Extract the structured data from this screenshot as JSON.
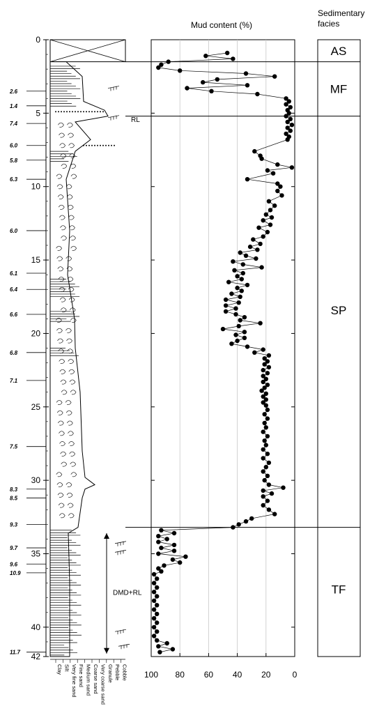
{
  "chart_data": {
    "type": "scatter",
    "title": "",
    "x_title": "Mud content (%)",
    "facies_title": "Sedimentary facies",
    "xlim": [
      100,
      0
    ],
    "ylim": [
      0,
      42
    ],
    "x_ticks": [
      100,
      80,
      60,
      40,
      20,
      0
    ],
    "y_ticks": [
      0,
      5,
      10,
      15,
      20,
      25,
      30,
      35,
      40,
      42
    ],
    "grid_x": [
      80,
      60,
      40,
      20
    ],
    "facies": [
      {
        "label": "AS",
        "top": 0,
        "bottom": 1.5
      },
      {
        "label": "MF",
        "top": 1.5,
        "bottom": 5.2
      },
      {
        "label": "SP",
        "top": 5.2,
        "bottom": 33.2
      },
      {
        "label": "TF",
        "top": 33.2,
        "bottom": 42
      }
    ],
    "boundaries": [
      1.5,
      5.2,
      33.2
    ],
    "ages": [
      {
        "label": "2.6",
        "depth": 3.5
      },
      {
        "label": "1.4",
        "depth": 4.5
      },
      {
        "label": "7.4",
        "depth": 5.7
      },
      {
        "label": "6.0",
        "depth": 7.2
      },
      {
        "label": "5.8",
        "depth": 8.2
      },
      {
        "label": "6.3",
        "depth": 9.5
      },
      {
        "label": "6.0",
        "depth": 13.0
      },
      {
        "label": "6.1",
        "depth": 15.9
      },
      {
        "label": "6.4",
        "depth": 17.0
      },
      {
        "label": "6.6",
        "depth": 18.7
      },
      {
        "label": "6.8",
        "depth": 21.3
      },
      {
        "label": "7.1",
        "depth": 23.2
      },
      {
        "label": "7.5",
        "depth": 27.7
      },
      {
        "label": "8.3",
        "depth": 30.6
      },
      {
        "label": "8.5",
        "depth": 31.2
      },
      {
        "label": "9.3",
        "depth": 33.0
      },
      {
        "label": "9.7",
        "depth": 34.6
      },
      {
        "label": "9.6",
        "depth": 35.7
      },
      {
        "label": "10.9",
        "depth": 36.3
      },
      {
        "label": "11.7",
        "depth": 41.7
      }
    ],
    "annotations": {
      "rl": "RL",
      "dmd": "DMD+RL"
    },
    "grain_sizes": [
      "Clay",
      "Silt",
      "Very fine sand",
      "Fine sand",
      "Medium sand",
      "Coarse sand",
      "Very coarse sand",
      "Granule",
      "Pebble",
      "Cobble"
    ],
    "series": [
      {
        "points": [
          [
            47,
            0.9
          ],
          [
            62,
            1.1
          ],
          [
            43,
            1.3
          ],
          [
            88,
            1.5
          ],
          [
            93,
            1.7
          ],
          [
            95,
            1.9
          ],
          [
            80,
            2.1
          ],
          [
            34,
            2.3
          ],
          [
            14,
            2.5
          ],
          [
            54,
            2.7
          ],
          [
            64,
            2.9
          ],
          [
            33,
            3.1
          ],
          [
            75,
            3.3
          ],
          [
            58,
            3.5
          ],
          [
            26,
            3.7
          ],
          [
            6,
            4.0
          ],
          [
            4,
            4.2
          ],
          [
            6,
            4.4
          ],
          [
            3,
            4.6
          ],
          [
            5,
            4.8
          ],
          [
            4,
            5.0
          ],
          [
            6,
            5.2
          ],
          [
            3,
            5.4
          ],
          [
            5,
            5.6
          ],
          [
            2,
            5.8
          ],
          [
            5,
            6.0
          ],
          [
            3,
            6.2
          ],
          [
            6,
            6.4
          ],
          [
            4,
            6.6
          ],
          [
            5,
            6.8
          ],
          [
            28,
            7.6
          ],
          [
            24,
            7.9
          ],
          [
            23,
            8.1
          ],
          [
            12,
            8.5
          ],
          [
            2,
            8.7
          ],
          [
            19,
            8.9
          ],
          [
            15,
            9.1
          ],
          [
            33,
            9.5
          ],
          [
            12,
            9.8
          ],
          [
            10,
            10.0
          ],
          [
            12,
            10.3
          ],
          [
            9,
            10.6
          ],
          [
            18,
            11.0
          ],
          [
            14,
            11.3
          ],
          [
            17,
            11.6
          ],
          [
            20,
            11.9
          ],
          [
            16,
            12.1
          ],
          [
            22,
            12.3
          ],
          [
            17,
            12.6
          ],
          [
            25,
            12.8
          ],
          [
            19,
            13.1
          ],
          [
            22,
            13.4
          ],
          [
            29,
            13.6
          ],
          [
            24,
            13.9
          ],
          [
            31,
            14.1
          ],
          [
            26,
            14.3
          ],
          [
            38,
            14.5
          ],
          [
            34,
            14.7
          ],
          [
            27,
            14.9
          ],
          [
            43,
            15.1
          ],
          [
            36,
            15.3
          ],
          [
            23,
            15.5
          ],
          [
            42,
            15.7
          ],
          [
            36,
            15.9
          ],
          [
            40,
            16.1
          ],
          [
            37,
            16.3
          ],
          [
            46,
            16.5
          ],
          [
            33,
            16.7
          ],
          [
            40,
            16.9
          ],
          [
            37,
            17.1
          ],
          [
            44,
            17.3
          ],
          [
            38,
            17.5
          ],
          [
            48,
            17.7
          ],
          [
            39,
            17.9
          ],
          [
            48,
            18.1
          ],
          [
            41,
            18.3
          ],
          [
            48,
            18.5
          ],
          [
            41,
            18.7
          ],
          [
            35,
            18.9
          ],
          [
            38,
            19.1
          ],
          [
            24,
            19.3
          ],
          [
            39,
            19.5
          ],
          [
            50,
            19.7
          ],
          [
            35,
            19.9
          ],
          [
            41,
            20.1
          ],
          [
            35,
            20.3
          ],
          [
            40,
            20.5
          ],
          [
            44,
            20.7
          ],
          [
            33,
            20.9
          ],
          [
            22,
            21.1
          ],
          [
            28,
            21.3
          ],
          [
            18,
            21.5
          ],
          [
            21,
            21.7
          ],
          [
            19,
            21.9
          ],
          [
            21,
            22.1
          ],
          [
            18,
            22.3
          ],
          [
            22,
            22.5
          ],
          [
            19,
            22.7
          ],
          [
            22,
            22.9
          ],
          [
            20,
            23.1
          ],
          [
            22,
            23.3
          ],
          [
            19,
            23.5
          ],
          [
            21,
            23.7
          ],
          [
            23,
            23.9
          ],
          [
            20,
            24.1
          ],
          [
            22,
            24.3
          ],
          [
            20,
            24.5
          ],
          [
            22,
            24.7
          ],
          [
            20,
            24.9
          ],
          [
            19,
            25.2
          ],
          [
            21,
            25.5
          ],
          [
            19,
            25.8
          ],
          [
            21,
            26.1
          ],
          [
            20,
            26.4
          ],
          [
            22,
            26.7
          ],
          [
            19,
            27.0
          ],
          [
            21,
            27.3
          ],
          [
            20,
            27.6
          ],
          [
            22,
            27.9
          ],
          [
            19,
            28.2
          ],
          [
            22,
            28.5
          ],
          [
            18,
            28.8
          ],
          [
            20,
            29.1
          ],
          [
            22,
            29.4
          ],
          [
            19,
            29.7
          ],
          [
            21,
            30.0
          ],
          [
            18,
            30.3
          ],
          [
            8,
            30.5
          ],
          [
            22,
            30.7
          ],
          [
            16,
            30.9
          ],
          [
            22,
            31.1
          ],
          [
            19,
            31.4
          ],
          [
            22,
            31.7
          ],
          [
            18,
            32.0
          ],
          [
            14,
            32.3
          ],
          [
            30,
            32.6
          ],
          [
            34,
            32.8
          ],
          [
            39,
            33.0
          ],
          [
            43,
            33.2
          ],
          [
            93,
            33.4
          ],
          [
            84,
            33.6
          ],
          [
            95,
            33.8
          ],
          [
            89,
            34.0
          ],
          [
            95,
            34.2
          ],
          [
            84,
            34.4
          ],
          [
            93,
            34.6
          ],
          [
            84,
            34.8
          ],
          [
            95,
            35.0
          ],
          [
            76,
            35.2
          ],
          [
            85,
            35.4
          ],
          [
            80,
            35.6
          ],
          [
            91,
            35.8
          ],
          [
            95,
            36.0
          ],
          [
            93,
            36.2
          ],
          [
            98,
            36.4
          ],
          [
            96,
            36.7
          ],
          [
            98,
            37.0
          ],
          [
            96,
            37.3
          ],
          [
            98,
            37.6
          ],
          [
            96,
            37.9
          ],
          [
            98,
            38.2
          ],
          [
            96,
            38.5
          ],
          [
            98,
            38.8
          ],
          [
            96,
            39.1
          ],
          [
            98,
            39.4
          ],
          [
            96,
            39.7
          ],
          [
            98,
            40.0
          ],
          [
            96,
            40.3
          ],
          [
            98,
            40.6
          ],
          [
            96,
            40.9
          ],
          [
            89,
            41.1
          ],
          [
            95,
            41.3
          ],
          [
            85,
            41.5
          ],
          [
            94,
            41.7
          ]
        ]
      }
    ]
  }
}
